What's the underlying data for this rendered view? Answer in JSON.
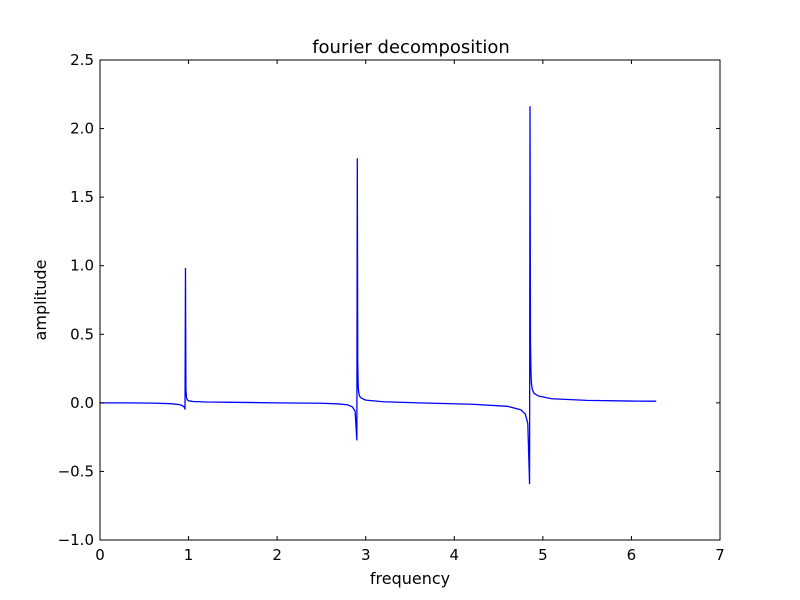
{
  "chart_data": {
    "type": "line",
    "title": "fourier decomposition",
    "xlabel": "frequency",
    "ylabel": "amplitude",
    "xlim": [
      0,
      7
    ],
    "ylim": [
      -1.0,
      2.5
    ],
    "xticks": [
      0,
      1,
      2,
      3,
      4,
      5,
      6,
      7
    ],
    "xtick_labels": [
      "0",
      "1",
      "2",
      "3",
      "4",
      "5",
      "6",
      "7"
    ],
    "yticks": [
      -1.0,
      -0.5,
      0.0,
      0.5,
      1.0,
      1.5,
      2.0,
      2.5
    ],
    "ytick_labels": [
      "−1.0",
      "−0.5",
      "0.0",
      "0.5",
      "1.0",
      "1.5",
      "2.0",
      "2.5"
    ],
    "grid": false,
    "line_color": "#0000ff",
    "series": [
      {
        "x": [
          0.0,
          0.3,
          0.6,
          0.8,
          0.9,
          0.93,
          0.95,
          0.96,
          0.965,
          0.97,
          0.975,
          0.98,
          0.99,
          1.0,
          1.05,
          1.2,
          1.5,
          2.0,
          2.5,
          2.7,
          2.8,
          2.85,
          2.88,
          2.9,
          2.905,
          2.91,
          2.915,
          2.92,
          2.93,
          2.95,
          3.0,
          3.2,
          3.6,
          4.2,
          4.6,
          4.75,
          4.8,
          4.83,
          4.85,
          4.855,
          4.86,
          4.865,
          4.87,
          4.88,
          4.9,
          4.95,
          5.1,
          5.5,
          6.0,
          6.28
        ],
        "y": [
          0.0,
          0.0,
          -0.002,
          -0.006,
          -0.013,
          -0.02,
          -0.03,
          -0.045,
          0.98,
          0.1,
          0.05,
          0.03,
          0.02,
          0.015,
          0.01,
          0.006,
          0.004,
          0.0,
          -0.003,
          -0.008,
          -0.015,
          -0.03,
          -0.06,
          -0.27,
          1.78,
          0.3,
          0.12,
          0.08,
          0.05,
          0.035,
          0.02,
          0.008,
          0.0,
          -0.01,
          -0.025,
          -0.05,
          -0.08,
          -0.15,
          -0.59,
          2.16,
          0.45,
          0.25,
          0.15,
          0.1,
          0.07,
          0.05,
          0.03,
          0.018,
          0.013,
          0.012
        ]
      }
    ]
  }
}
